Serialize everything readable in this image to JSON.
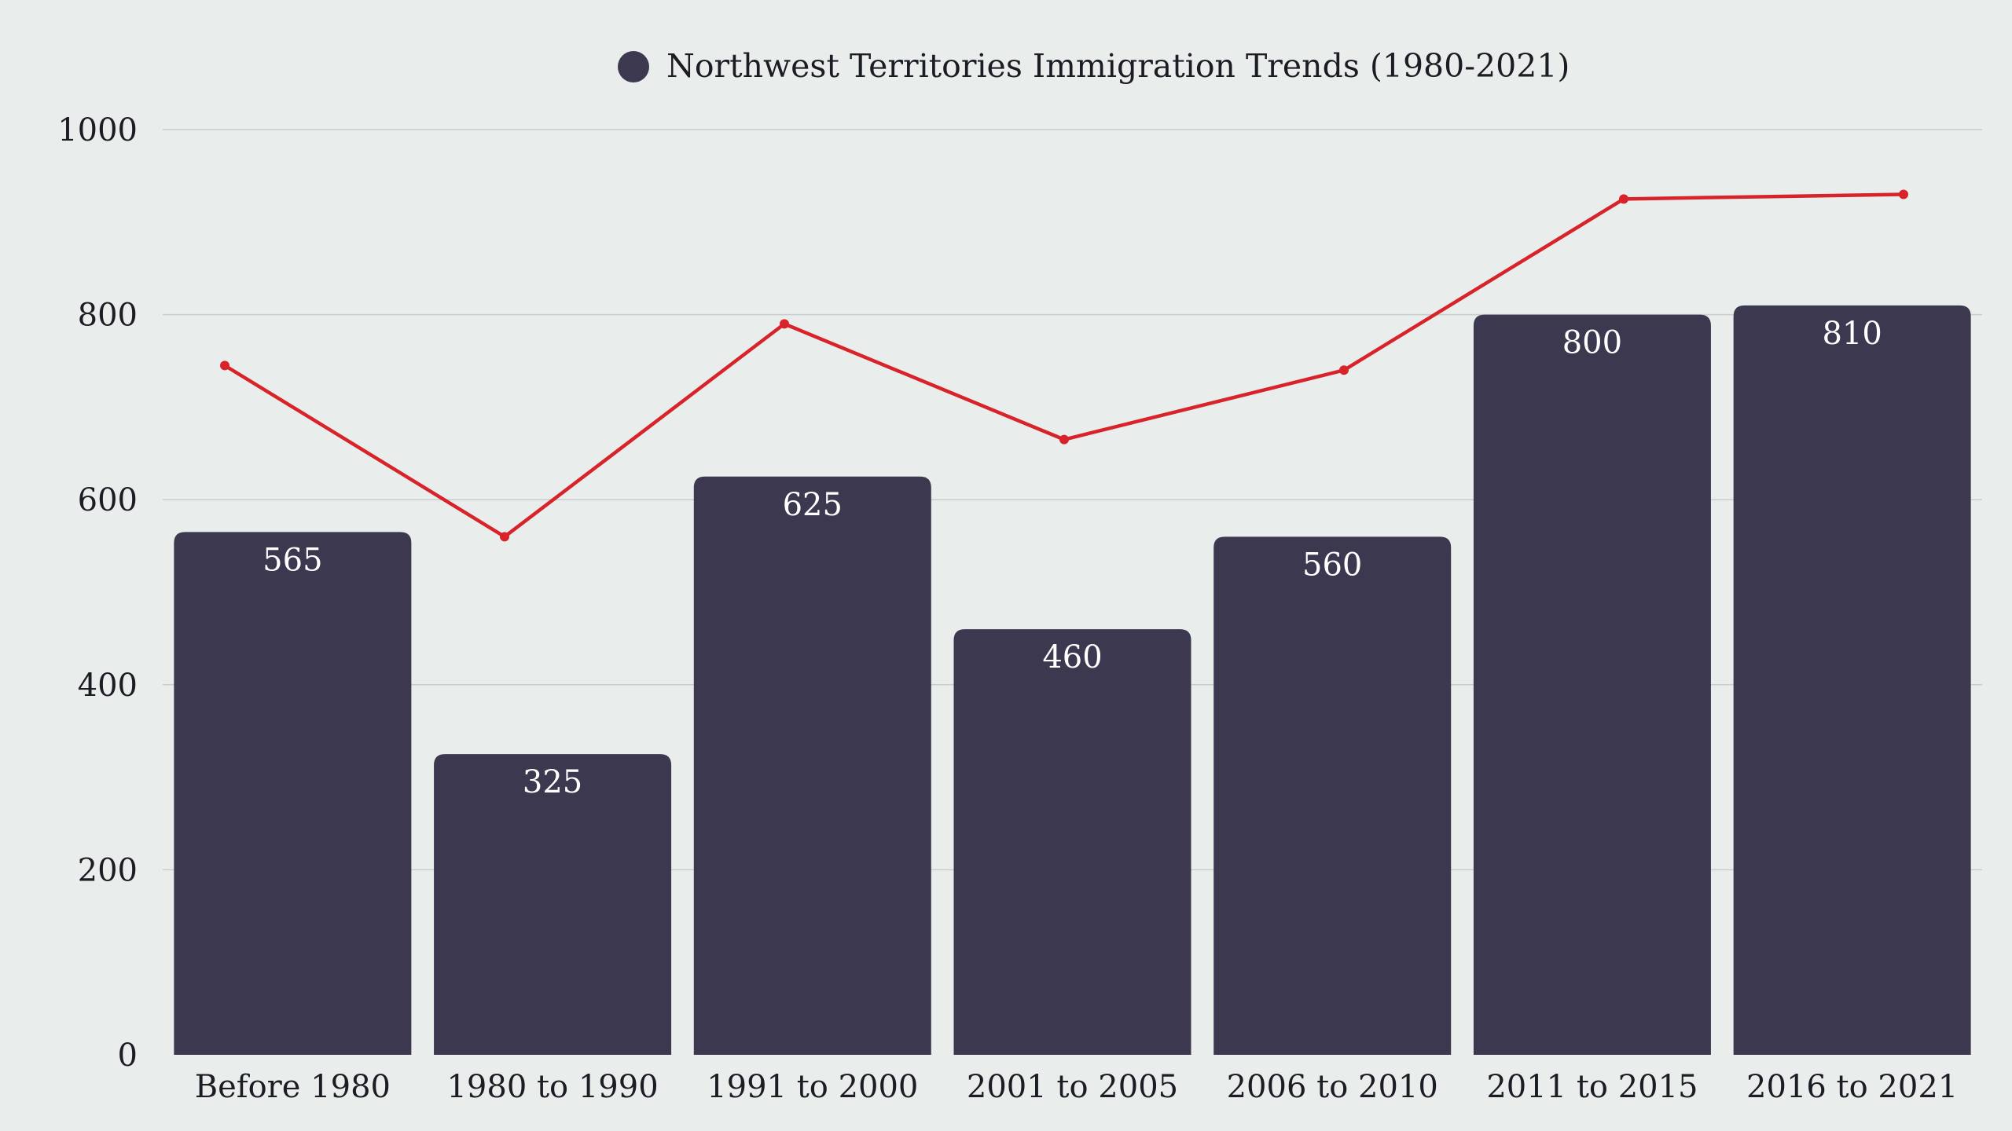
{
  "colors": {
    "background": "#e9eeec",
    "bar": "#3c3850",
    "bar_label": "#ffffff",
    "line": "#d8232a",
    "text": "#1c1c24",
    "gridline": "#c9cdcc"
  },
  "chart_data": {
    "type": "bar",
    "title": "",
    "xlabel": "",
    "ylabel": "",
    "ylim": [
      0,
      1000
    ],
    "yticks": [
      0,
      200,
      400,
      600,
      800,
      1000
    ],
    "grid": true,
    "legend_placement": "top-center",
    "categories": [
      "Before 1980",
      "1980 to 1990",
      "1991 to 2000",
      "2001 to 2005",
      "2006 to 2010",
      "2011 to 2015",
      "2016 to 2021"
    ],
    "series": [
      {
        "name": "Northwest Territories Immigration Trends (1980-2021)",
        "type": "bar",
        "values": [
          565,
          325,
          625,
          460,
          560,
          800,
          810
        ],
        "data_labels": [
          "565",
          "325",
          "625",
          "460",
          "560",
          "800",
          "810"
        ]
      },
      {
        "type": "line",
        "values": [
          745,
          560,
          790,
          665,
          740,
          925,
          930
        ]
      }
    ]
  }
}
